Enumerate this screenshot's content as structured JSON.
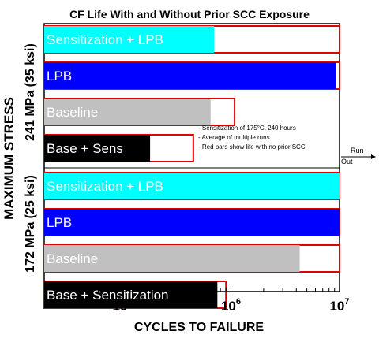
{
  "chart_data": {
    "type": "bar",
    "orientation": "horizontal",
    "title": "CF Life With and Without Prior SCC Exposure",
    "xlabel": "CYCLES TO FAILURE",
    "ylabel": "MAXIMUM STRESS",
    "x_scale": "log",
    "xlim": [
      100000,
      10000000
    ],
    "x_ticks": [
      {
        "value": 100000,
        "base": "10",
        "exp": "5"
      },
      {
        "value": 1000000,
        "base": "10",
        "exp": "6"
      },
      {
        "value": 10000000,
        "base": "10",
        "exp": "7"
      }
    ],
    "groups": [
      {
        "label": "241 MPa (35 ksi)",
        "bars": [
          {
            "label": "Sensitization + LPB",
            "value": 700000,
            "no_prior_scc_value": 10000000,
            "color": "#00ffff",
            "label_color": "#ffffff"
          },
          {
            "label": "LPB",
            "value": 9200000,
            "no_prior_scc_value": 10000000,
            "color": "#0000ff",
            "label_color": "#ffffff"
          },
          {
            "label": "Baseline",
            "value": 650000,
            "no_prior_scc_value": 1080000,
            "color": "#c0c0c0",
            "label_color": "#ffffff"
          },
          {
            "label": "Base + Sens",
            "value": 180000,
            "no_prior_scc_value": 450000,
            "color": "#000000",
            "label_color": "#ffffff"
          }
        ]
      },
      {
        "label": "172 MPa (25 ksi)",
        "bars": [
          {
            "label": "Sensitization + LPB",
            "value": 10000000,
            "no_prior_scc_value": 10000000,
            "color": "#00ffff",
            "label_color": "#ffffff"
          },
          {
            "label": "LPB",
            "value": 10000000,
            "no_prior_scc_value": 10000000,
            "color": "#0000ff",
            "label_color": "#ffffff"
          },
          {
            "label": "Baseline",
            "value": 4300000,
            "no_prior_scc_value": 10000000,
            "color": "#c0c0c0",
            "label_color": "#ffffff"
          },
          {
            "label": "Base + Sensitization",
            "value": 750000,
            "no_prior_scc_value": 900000,
            "color": "#000000",
            "label_color": "#ffffff"
          }
        ]
      }
    ],
    "annotations": [
      "- Sensitization of 175°C, 240 hours",
      "- Average of multiple runs",
      "- Red bars show life with no prior SCC"
    ],
    "runout_label": [
      "Run",
      "Out"
    ],
    "colors": {
      "no_prior_scc_outline": "#e00000",
      "frame": "#000000"
    }
  }
}
